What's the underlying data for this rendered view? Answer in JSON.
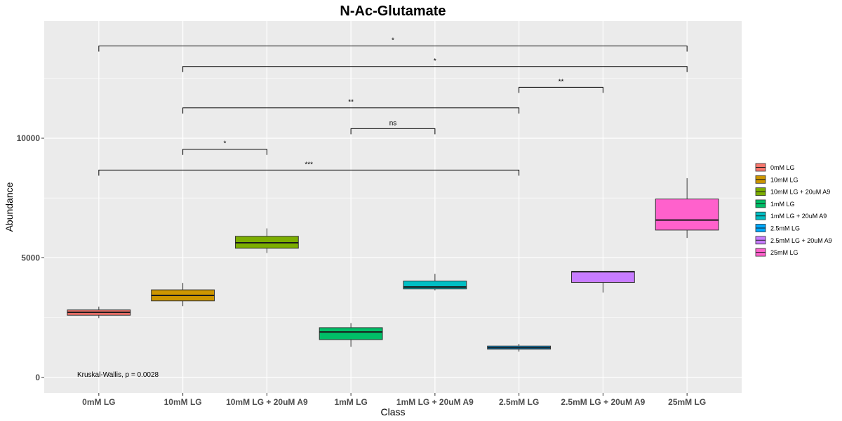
{
  "chart_data": {
    "type": "box",
    "title": "N-Ac-Glutamate",
    "xlabel": "Class",
    "ylabel": "Abundance",
    "ylim": [
      -650,
      14900
    ],
    "yticks": [
      0,
      5000,
      10000
    ],
    "grid": true,
    "legend_position": "right",
    "categories": [
      "0mM LG",
      "10mM LG",
      "10mM LG + 20uM A9",
      "1mM LG",
      "1mM LG + 20uM A9",
      "2.5mM LG",
      "2.5mM LG + 20uM A9",
      "25mM LG"
    ],
    "colors": [
      "#F8766D",
      "#CD9600",
      "#7CAE00",
      "#00BE67",
      "#00BFC4",
      "#00A9FF",
      "#C77CFF",
      "#FF61CC"
    ],
    "boxes": [
      {
        "category": "0mM LG",
        "min": 2480,
        "q1": 2600,
        "median": 2720,
        "q3": 2820,
        "max": 2960
      },
      {
        "category": "10mM LG",
        "min": 2980,
        "q1": 3200,
        "median": 3430,
        "q3": 3660,
        "max": 3950
      },
      {
        "category": "10mM LG + 20uM A9",
        "min": 5200,
        "q1": 5400,
        "median": 5630,
        "q3": 5900,
        "max": 6230
      },
      {
        "category": "1mM LG",
        "min": 1280,
        "q1": 1580,
        "median": 1900,
        "q3": 2080,
        "max": 2270
      },
      {
        "category": "1mM LG + 20uM A9",
        "min": 3640,
        "q1": 3700,
        "median": 3780,
        "q3": 4030,
        "max": 4330
      },
      {
        "category": "2.5mM LG",
        "min": 1080,
        "q1": 1180,
        "median": 1240,
        "q3": 1310,
        "max": 1400
      },
      {
        "category": "2.5mM LG + 20uM A9",
        "min": 3550,
        "q1": 3970,
        "median": 4420,
        "q3": 4430,
        "max": 4440
      },
      {
        "category": "25mM LG",
        "min": 5830,
        "q1": 6160,
        "median": 6580,
        "q3": 7460,
        "max": 8330
      }
    ],
    "comparisons": [
      {
        "from": "0mM LG",
        "to": "2.5mM LG",
        "y": 8670,
        "label": "***"
      },
      {
        "from": "10mM LG",
        "to": "10mM LG + 20uM A9",
        "y": 9540,
        "label": "*"
      },
      {
        "from": "1mM LG",
        "to": "1mM LG + 20uM A9",
        "y": 10400,
        "label": "ns"
      },
      {
        "from": "10mM LG",
        "to": "2.5mM LG",
        "y": 11270,
        "label": "**"
      },
      {
        "from": "2.5mM LG",
        "to": "2.5mM LG + 20uM A9",
        "y": 12130,
        "label": "**"
      },
      {
        "from": "10mM LG",
        "to": "25mM LG",
        "y": 13000,
        "label": "*"
      },
      {
        "from": "0mM LG",
        "to": "25mM LG",
        "y": 13860,
        "label": "*"
      }
    ],
    "annotation": "Kruskal-Wallis, p = 0.0028",
    "legend": [
      "0mM LG",
      "10mM LG",
      "10mM LG + 20uM A9",
      "1mM LG",
      "1mM LG + 20uM A9",
      "2.5mM LG",
      "2.5mM LG + 20uM A9",
      "25mM LG"
    ]
  }
}
